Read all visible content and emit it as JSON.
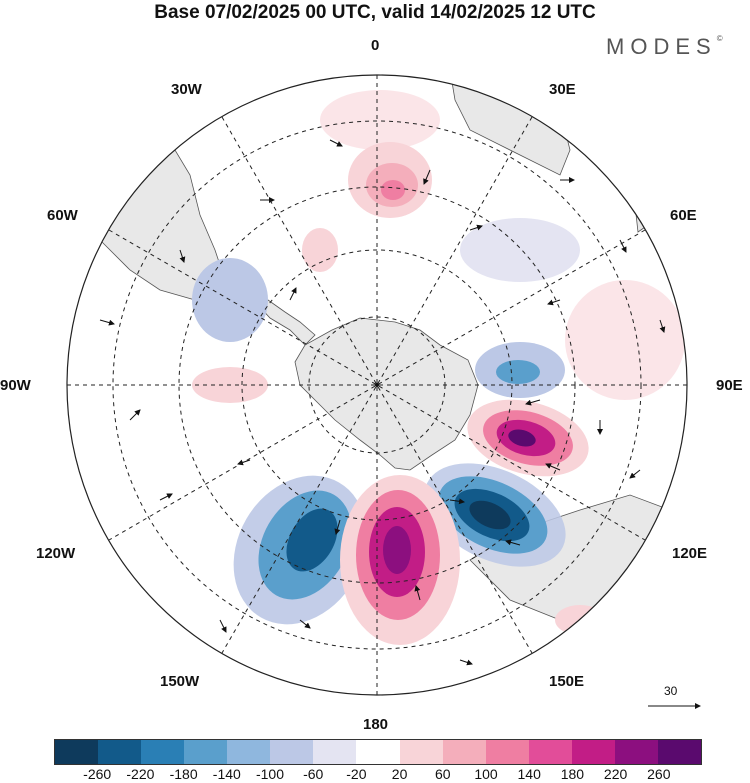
{
  "title": "Base 07/02/2025 00 UTC, valid 14/02/2025 12 UTC",
  "logo": "MODES",
  "logo_mark": "©",
  "longitude_labels": {
    "n": "0",
    "ne": "30E",
    "e1": "60E",
    "e": "90E",
    "se1": "120E",
    "se": "150E",
    "s": "180",
    "sw": "150W",
    "sw1": "120W",
    "w": "90W",
    "nw1": "60W",
    "nw": "30W"
  },
  "reference_vector": {
    "value": "30"
  },
  "colorbar": {
    "colors": [
      "#0e3a5c",
      "#125a8a",
      "#2a7fb5",
      "#5a9fcc",
      "#8fb7de",
      "#bcc8e6",
      "#e4e4f2",
      "#ffffff",
      "#f8d4d8",
      "#f4aebb",
      "#ef7ea2",
      "#e24d99",
      "#c21d86",
      "#8c0f7f",
      "#5a0a6e"
    ],
    "labels": [
      "-260",
      "-220",
      "-180",
      "-140",
      "-100",
      "-60",
      "-20",
      "20",
      "60",
      "100",
      "140",
      "180",
      "220",
      "260"
    ]
  },
  "colors": {
    "land": "#e8e8e8",
    "coast": "#555555",
    "grid": "#222222"
  }
}
